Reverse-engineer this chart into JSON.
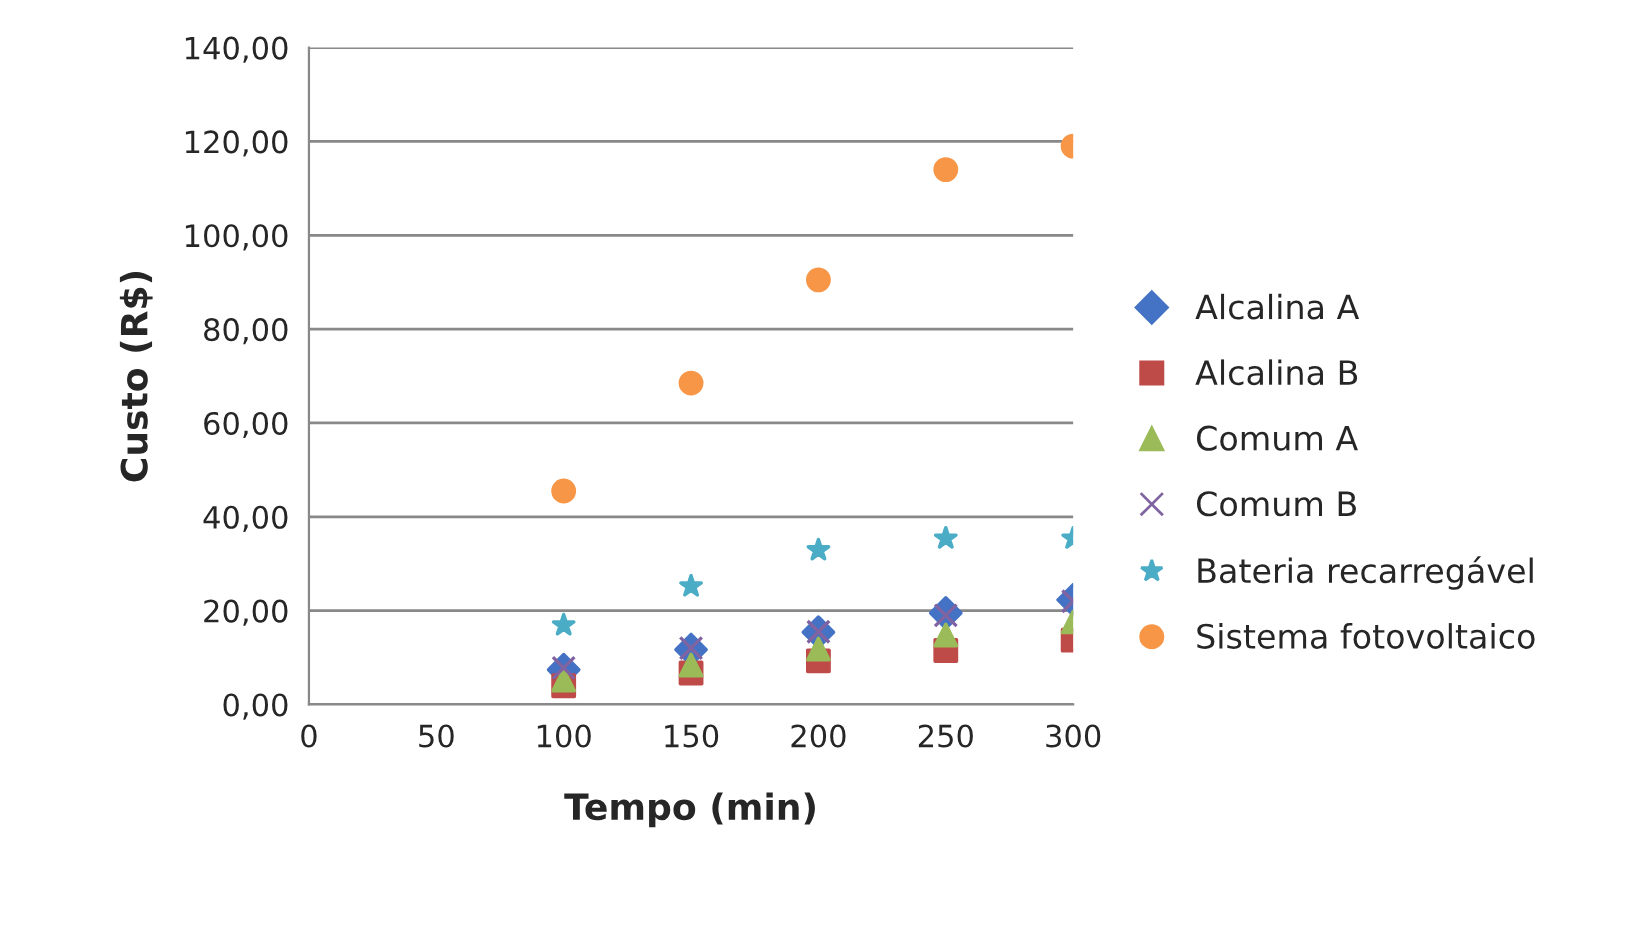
{
  "chart_data": {
    "type": "scatter",
    "xlabel": "Tempo (min)",
    "ylabel": "Custo (R$)",
    "x": [
      100,
      150,
      200,
      250,
      300
    ],
    "xlim": [
      0,
      300
    ],
    "xticks": [
      0,
      50,
      100,
      150,
      200,
      250,
      300
    ],
    "ylim": [
      0,
      140
    ],
    "yticks": [
      {
        "value": 0,
        "label": "0,00"
      },
      {
        "value": 20,
        "label": "20,00"
      },
      {
        "value": 40,
        "label": "40,00"
      },
      {
        "value": 60,
        "label": "60,00"
      },
      {
        "value": 80,
        "label": "80,00"
      },
      {
        "value": 100,
        "label": "100,00"
      },
      {
        "value": 120,
        "label": "120,00"
      },
      {
        "value": 140,
        "label": "140,00"
      }
    ],
    "grid": "y",
    "legend": "right",
    "series": [
      {
        "name": "Alcalina A",
        "color": "#4472c4",
        "marker": "diamond",
        "values": [
          7.4,
          11.7,
          15.4,
          19.5,
          22.3
        ]
      },
      {
        "name": "Alcalina B",
        "color": "#be4b48",
        "marker": "square",
        "values": [
          4,
          6.7,
          9.3,
          11.5,
          13.7
        ]
      },
      {
        "name": "Comum A",
        "color": "#9bbb59",
        "marker": "triangle",
        "values": [
          5.2,
          8.4,
          11.8,
          14.8,
          17.6
        ]
      },
      {
        "name": "Comum B",
        "color": "#8064a2",
        "marker": "cross",
        "values": [
          7.8,
          12,
          15.5,
          19,
          22
        ]
      },
      {
        "name": "Bateria recarregável",
        "color": "#4bacc6",
        "marker": "star",
        "values": [
          16.9,
          25.2,
          32.9,
          35.4,
          35.4
        ]
      },
      {
        "name": "Sistema fotovoltaico",
        "color": "#f79646",
        "marker": "circle",
        "values": [
          45.5,
          68.5,
          90.5,
          114,
          119
        ]
      }
    ]
  }
}
